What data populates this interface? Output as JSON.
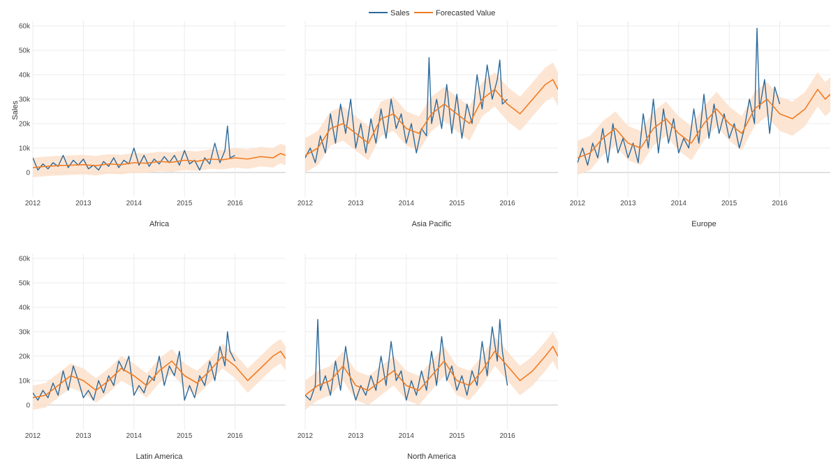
{
  "chart_data": {
    "type": "line",
    "ylabel": "Sales",
    "ylim": [
      -10000,
      62000
    ],
    "yticks": [
      0,
      10000,
      20000,
      30000,
      40000,
      50000,
      60000
    ],
    "ytick_labels": [
      "0",
      "10k",
      "20k",
      "30k",
      "40k",
      "50k",
      "60k"
    ],
    "xlim": [
      2012.0,
      2017.0
    ],
    "xticks": [
      2012,
      2013,
      2014,
      2015,
      2016
    ],
    "xtick_labels": [
      "2012",
      "2013",
      "2014",
      "2015",
      "2016"
    ],
    "grid": true,
    "legend": {
      "placement": "top-center",
      "entries": [
        {
          "name": "Sales",
          "color": "#2c6a9a"
        },
        {
          "name": "Forecasted Value",
          "color": "#f07b22"
        }
      ]
    },
    "band_color": "#fde0cb",
    "panels": [
      {
        "title": "Africa",
        "sales_x": [
          2012.0,
          2012.1,
          2012.2,
          2012.3,
          2012.4,
          2012.5,
          2012.6,
          2012.7,
          2012.8,
          2012.9,
          2013.0,
          2013.1,
          2013.2,
          2013.3,
          2013.4,
          2013.5,
          2013.6,
          2013.7,
          2013.8,
          2013.9,
          2014.0,
          2014.1,
          2014.2,
          2014.3,
          2014.4,
          2014.5,
          2014.6,
          2014.7,
          2014.8,
          2014.9,
          2015.0,
          2015.1,
          2015.2,
          2015.3,
          2015.4,
          2015.5,
          2015.6,
          2015.7,
          2015.8,
          2015.85,
          2015.9,
          2016.0
        ],
        "sales_y": [
          6000,
          1000,
          3500,
          1500,
          4000,
          2500,
          7000,
          2000,
          5000,
          3000,
          5500,
          1500,
          3000,
          1000,
          4500,
          2500,
          6000,
          2000,
          5000,
          3500,
          10000,
          3000,
          7000,
          2500,
          5500,
          3500,
          6500,
          4000,
          7000,
          3000,
          9000,
          3500,
          5000,
          1000,
          6000,
          3500,
          12000,
          4000,
          9000,
          19000,
          6000,
          7000
        ],
        "fc_x": [
          2012.0,
          2012.25,
          2012.5,
          2012.75,
          2013.0,
          2013.25,
          2013.5,
          2013.75,
          2014.0,
          2014.25,
          2014.5,
          2014.75,
          2015.0,
          2015.25,
          2015.5,
          2015.75,
          2016.0,
          2016.25,
          2016.5,
          2016.75,
          2016.9,
          2017.0
        ],
        "fc_y": [
          2000,
          2500,
          2800,
          3000,
          3200,
          2800,
          3500,
          3200,
          4000,
          3800,
          4500,
          4200,
          5000,
          4600,
          5500,
          5200,
          6000,
          5500,
          6500,
          6000,
          7800,
          7000
        ],
        "band_halfwidth": 4000
      },
      {
        "title": "Asia Pacific",
        "sales_x": [
          2012.0,
          2012.1,
          2012.2,
          2012.3,
          2012.4,
          2012.5,
          2012.6,
          2012.7,
          2012.8,
          2012.9,
          2013.0,
          2013.1,
          2013.2,
          2013.3,
          2013.4,
          2013.5,
          2013.6,
          2013.7,
          2013.8,
          2013.9,
          2014.0,
          2014.1,
          2014.2,
          2014.3,
          2014.4,
          2014.45,
          2014.5,
          2014.6,
          2014.7,
          2014.8,
          2014.9,
          2015.0,
          2015.1,
          2015.2,
          2015.3,
          2015.4,
          2015.5,
          2015.6,
          2015.7,
          2015.8,
          2015.85,
          2015.9,
          2016.0
        ],
        "sales_y": [
          6000,
          10000,
          4000,
          15000,
          8000,
          24000,
          12000,
          28000,
          16000,
          30000,
          10000,
          20000,
          8000,
          22000,
          12000,
          26000,
          14000,
          30000,
          18000,
          24000,
          12000,
          20000,
          8000,
          18000,
          15000,
          47000,
          20000,
          30000,
          18000,
          36000,
          16000,
          32000,
          14000,
          28000,
          20000,
          40000,
          26000,
          44000,
          30000,
          38000,
          46000,
          28000,
          30000
        ],
        "fc_x": [
          2012.0,
          2012.25,
          2012.5,
          2012.75,
          2013.0,
          2013.25,
          2013.5,
          2013.75,
          2014.0,
          2014.25,
          2014.5,
          2014.75,
          2015.0,
          2015.25,
          2015.5,
          2015.75,
          2016.0,
          2016.25,
          2016.5,
          2016.75,
          2016.9,
          2017.0
        ],
        "fc_y": [
          7000,
          10000,
          18000,
          20000,
          16000,
          12000,
          22000,
          24000,
          18000,
          16000,
          24000,
          28000,
          24000,
          20000,
          30000,
          34000,
          28000,
          24000,
          30000,
          36000,
          38000,
          34000
        ],
        "band_halfwidth": 7000
      },
      {
        "title": "Europe",
        "sales_x": [
          2012.0,
          2012.1,
          2012.2,
          2012.3,
          2012.4,
          2012.5,
          2012.6,
          2012.7,
          2012.8,
          2012.9,
          2013.0,
          2013.1,
          2013.2,
          2013.3,
          2013.4,
          2013.5,
          2013.6,
          2013.7,
          2013.8,
          2013.9,
          2014.0,
          2014.1,
          2014.2,
          2014.3,
          2014.4,
          2014.5,
          2014.6,
          2014.7,
          2014.8,
          2014.9,
          2015.0,
          2015.1,
          2015.2,
          2015.3,
          2015.4,
          2015.5,
          2015.55,
          2015.6,
          2015.7,
          2015.8,
          2015.9,
          2016.0
        ],
        "sales_y": [
          4000,
          10000,
          3000,
          12000,
          6000,
          18000,
          4000,
          20000,
          8000,
          14000,
          6000,
          12000,
          4000,
          24000,
          10000,
          30000,
          8000,
          26000,
          12000,
          22000,
          8000,
          14000,
          10000,
          26000,
          12000,
          32000,
          14000,
          28000,
          16000,
          24000,
          14000,
          20000,
          10000,
          18000,
          30000,
          20000,
          59000,
          26000,
          38000,
          16000,
          35000,
          28000
        ],
        "fc_x": [
          2012.0,
          2012.25,
          2012.5,
          2012.75,
          2013.0,
          2013.25,
          2013.5,
          2013.75,
          2014.0,
          2014.25,
          2014.5,
          2014.75,
          2015.0,
          2015.25,
          2015.5,
          2015.75,
          2016.0,
          2016.25,
          2016.5,
          2016.75,
          2016.9,
          2017.0
        ],
        "fc_y": [
          6000,
          8000,
          14000,
          18000,
          12000,
          10000,
          18000,
          22000,
          16000,
          12000,
          20000,
          26000,
          20000,
          16000,
          26000,
          30000,
          24000,
          22000,
          26000,
          34000,
          30000,
          32000
        ],
        "band_halfwidth": 7000
      },
      {
        "title": "Latin America",
        "sales_x": [
          2012.0,
          2012.1,
          2012.2,
          2012.3,
          2012.4,
          2012.5,
          2012.6,
          2012.7,
          2012.8,
          2012.9,
          2013.0,
          2013.1,
          2013.2,
          2013.3,
          2013.4,
          2013.5,
          2013.6,
          2013.7,
          2013.8,
          2013.9,
          2014.0,
          2014.1,
          2014.2,
          2014.3,
          2014.4,
          2014.5,
          2014.6,
          2014.7,
          2014.8,
          2014.9,
          2015.0,
          2015.1,
          2015.2,
          2015.3,
          2015.4,
          2015.5,
          2015.6,
          2015.7,
          2015.8,
          2015.85,
          2015.9,
          2016.0
        ],
        "sales_y": [
          5000,
          2000,
          6000,
          3000,
          9000,
          4000,
          14000,
          6000,
          16000,
          10000,
          3000,
          6000,
          2000,
          10000,
          5000,
          12000,
          8000,
          18000,
          14000,
          20000,
          4000,
          8000,
          5000,
          12000,
          10000,
          20000,
          8000,
          16000,
          12000,
          22000,
          2000,
          8000,
          3000,
          12000,
          8000,
          18000,
          10000,
          24000,
          16000,
          30000,
          22000,
          18000
        ],
        "fc_x": [
          2012.0,
          2012.25,
          2012.5,
          2012.75,
          2013.0,
          2013.25,
          2013.5,
          2013.75,
          2014.0,
          2014.25,
          2014.5,
          2014.75,
          2015.0,
          2015.25,
          2015.5,
          2015.75,
          2016.0,
          2016.25,
          2016.5,
          2016.75,
          2016.9,
          2017.0
        ],
        "fc_y": [
          3000,
          4000,
          8000,
          12000,
          10000,
          6000,
          10000,
          15000,
          12000,
          8000,
          14000,
          18000,
          12000,
          9000,
          14000,
          20000,
          16000,
          10000,
          15000,
          20000,
          22000,
          19000
        ],
        "band_halfwidth": 5000
      },
      {
        "title": "North America",
        "sales_x": [
          2012.0,
          2012.1,
          2012.2,
          2012.25,
          2012.3,
          2012.4,
          2012.5,
          2012.6,
          2012.7,
          2012.8,
          2012.9,
          2013.0,
          2013.1,
          2013.2,
          2013.3,
          2013.4,
          2013.5,
          2013.6,
          2013.7,
          2013.8,
          2013.9,
          2014.0,
          2014.1,
          2014.2,
          2014.3,
          2014.4,
          2014.5,
          2014.6,
          2014.7,
          2014.8,
          2014.9,
          2015.0,
          2015.1,
          2015.2,
          2015.3,
          2015.4,
          2015.5,
          2015.6,
          2015.7,
          2015.8,
          2015.85,
          2015.9,
          2016.0
        ],
        "sales_y": [
          4000,
          2000,
          8000,
          35000,
          6000,
          12000,
          4000,
          18000,
          6000,
          24000,
          10000,
          2000,
          8000,
          4000,
          12000,
          6000,
          20000,
          8000,
          26000,
          10000,
          14000,
          2000,
          10000,
          4000,
          14000,
          6000,
          22000,
          8000,
          28000,
          10000,
          16000,
          6000,
          12000,
          4000,
          14000,
          8000,
          26000,
          12000,
          32000,
          18000,
          35000,
          22000,
          8000
        ],
        "fc_x": [
          2012.0,
          2012.25,
          2012.5,
          2012.75,
          2013.0,
          2013.25,
          2013.5,
          2013.75,
          2014.0,
          2014.25,
          2014.5,
          2014.75,
          2015.0,
          2015.25,
          2015.5,
          2015.75,
          2016.0,
          2016.25,
          2016.5,
          2016.75,
          2016.9,
          2017.0
        ],
        "fc_y": [
          4000,
          8000,
          10000,
          16000,
          8000,
          6000,
          10000,
          14000,
          8000,
          6000,
          12000,
          18000,
          10000,
          8000,
          14000,
          22000,
          16000,
          10000,
          14000,
          20000,
          24000,
          20000
        ],
        "band_halfwidth": 6000
      }
    ]
  }
}
